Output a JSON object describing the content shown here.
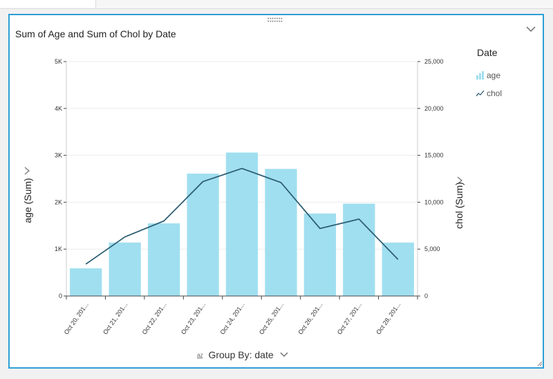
{
  "title": "Sum of Age and Sum of Chol by Date",
  "legend": {
    "title": "Date",
    "items": [
      {
        "label": "age",
        "type": "bar",
        "color": "#a0dff0"
      },
      {
        "label": "chol",
        "type": "line",
        "color": "#2e5f73"
      }
    ]
  },
  "group_by": "Group By: date",
  "group_by_icon": "az",
  "chart_data": {
    "type": "bar+line",
    "title": "Sum of Age and Sum of Chol by Date",
    "xlabel": "Group By: date",
    "ylabel_left": "age (Sum)",
    "ylabel_right": "chol (Sum)",
    "categories": [
      "Oct 20, 201...",
      "Oct 21, 201...",
      "Oct 22, 201...",
      "Oct 23, 201...",
      "Oct 24, 201...",
      "Oct 25, 201...",
      "Oct 26, 201...",
      "Oct 27, 201...",
      "Oct 28, 201..."
    ],
    "series": [
      {
        "name": "age",
        "type": "bar",
        "axis": "left",
        "values": [
          590,
          1140,
          1550,
          2610,
          3060,
          2710,
          1760,
          1970,
          1140
        ]
      },
      {
        "name": "chol",
        "type": "line",
        "axis": "right",
        "values": [
          3400,
          6300,
          8000,
          12200,
          13600,
          12100,
          7200,
          8200,
          3900
        ]
      }
    ],
    "y_left": {
      "ylim": [
        0,
        5000
      ],
      "ticks": [
        0,
        1000,
        2000,
        3000,
        4000,
        5000
      ],
      "tick_labels": [
        "0",
        "1K",
        "2K",
        "3K",
        "4K",
        "5K"
      ]
    },
    "y_right": {
      "ylim": [
        0,
        25000
      ],
      "ticks": [
        0,
        5000,
        10000,
        15000,
        20000,
        25000
      ],
      "tick_labels": [
        "0",
        "5,000",
        "10,000",
        "15,000",
        "20,000",
        "25,000"
      ]
    }
  }
}
